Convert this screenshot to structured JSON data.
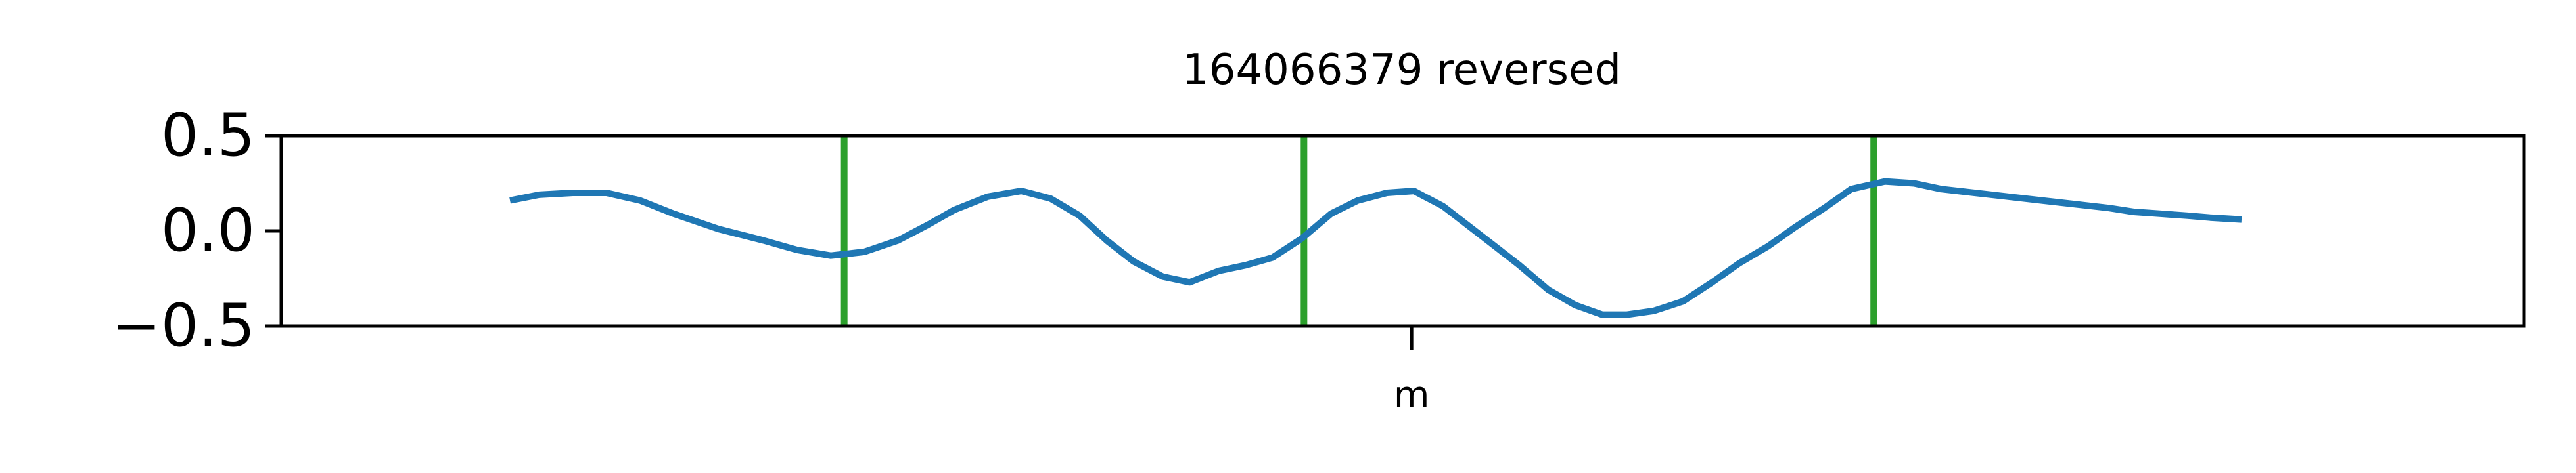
{
  "chart_data": {
    "type": "line",
    "title": "164066379 reversed",
    "xlabel": "",
    "ylabel": "",
    "ylim": [
      -0.5,
      0.5
    ],
    "yticks": [
      {
        "value": 0.5,
        "label": "0.5"
      },
      {
        "value": 0.0,
        "label": "0.0"
      },
      {
        "value": -0.5,
        "label": "−0.5"
      }
    ],
    "xlim": [
      0,
      100
    ],
    "xticks": [
      {
        "value": 50.4,
        "label": "m"
      }
    ],
    "grid": false,
    "series": [
      {
        "color": "#1f77b4",
        "x": [
          10.2,
          11.5,
          13.0,
          14.5,
          16.0,
          17.5,
          19.5,
          21.5,
          23.0,
          24.5,
          26.0,
          27.5,
          28.8,
          30.0,
          31.5,
          33.0,
          34.3,
          35.6,
          36.8,
          38.0,
          39.3,
          40.5,
          41.8,
          43.0,
          44.2,
          45.5,
          46.8,
          48.0,
          49.3,
          50.5,
          51.8,
          52.9,
          54.0,
          55.2,
          56.5,
          57.7,
          58.9,
          60.0,
          61.2,
          62.5,
          63.8,
          65.0,
          66.3,
          67.5,
          68.8,
          70.0,
          71.5,
          72.8,
          74.0,
          75.5,
          77.0,
          78.5,
          80.0,
          81.5,
          82.6,
          83.8,
          85.0,
          86.0,
          87.4
        ],
        "y": [
          0.16,
          0.19,
          0.2,
          0.2,
          0.16,
          0.09,
          0.01,
          -0.05,
          -0.1,
          -0.13,
          -0.11,
          -0.05,
          0.03,
          0.11,
          0.18,
          0.21,
          0.17,
          0.08,
          -0.05,
          -0.16,
          -0.24,
          -0.27,
          -0.21,
          -0.18,
          -0.14,
          -0.04,
          0.09,
          0.16,
          0.2,
          0.21,
          0.13,
          0.03,
          -0.07,
          -0.18,
          -0.31,
          -0.39,
          -0.44,
          -0.44,
          -0.42,
          -0.37,
          -0.27,
          -0.17,
          -0.08,
          0.02,
          0.12,
          0.22,
          0.26,
          0.25,
          0.22,
          0.2,
          0.18,
          0.16,
          0.14,
          0.12,
          0.1,
          0.09,
          0.08,
          0.07,
          0.06
        ]
      }
    ],
    "vertical_lines": {
      "color": "#2ca02c",
      "x": [
        25.1,
        45.6,
        71.0
      ]
    }
  }
}
